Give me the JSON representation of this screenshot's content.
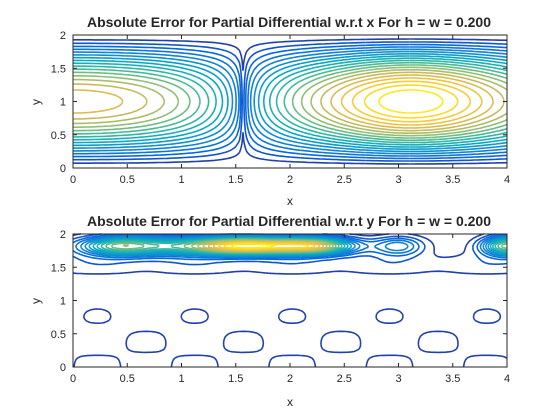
{
  "figure": {
    "background": "#ffffff"
  },
  "colormap": [
    "#352a87",
    "#0363e1",
    "#1485d4",
    "#06a7c6",
    "#38b99e",
    "#92bf73",
    "#d9ba56",
    "#fcce2e",
    "#f9fb0e"
  ],
  "chart_data": [
    {
      "type": "contour",
      "title": "Absolute Error for Partial Differential w.r.t x For h = w = 0.200",
      "xlabel": "x",
      "ylabel": "y",
      "xlim": [
        0,
        4
      ],
      "ylim": [
        0,
        2
      ],
      "xticks": [
        "0",
        "0.5",
        "1",
        "1.5",
        "2",
        "2.5",
        "3",
        "3.5",
        "4"
      ],
      "yticks": [
        "0",
        "0.5",
        "1",
        "1.5",
        "2"
      ],
      "grid": false,
      "box": true,
      "levels": 20,
      "peaks": [
        {
          "x": 0,
          "y": 1
        },
        {
          "x": 3.1,
          "y": 1
        }
      ],
      "minimum_line_x": 1.57
    },
    {
      "type": "contour",
      "title": "Absolute Error for Partial Differential w.r.t y For h = w = 0.200",
      "xlabel": "x",
      "ylabel": "y",
      "xlim": [
        0,
        4
      ],
      "ylim": [
        0,
        2
      ],
      "xticks": [
        "0",
        "0.5",
        "1",
        "1.5",
        "2",
        "2.5",
        "3",
        "3.5",
        "4"
      ],
      "yticks": [
        "0",
        "0.5",
        "1",
        "1.5",
        "2"
      ],
      "grid": false,
      "box": true,
      "levels": 20,
      "peaks": [
        {
          "x": 1.6,
          "y": 1.8
        },
        {
          "x": 2.2,
          "y": 1.8
        },
        {
          "x": 4,
          "y": 1.8
        }
      ],
      "high_band_y": 1.8
    }
  ]
}
